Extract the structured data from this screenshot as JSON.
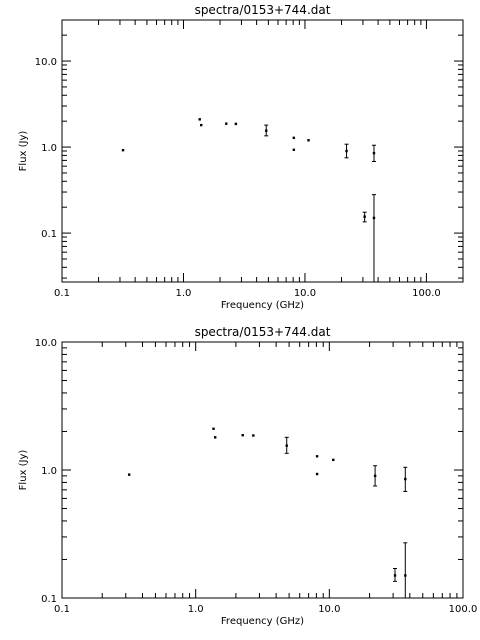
{
  "chart_data": [
    {
      "type": "scatter",
      "title": "spectra/0153+744.dat",
      "xlabel": "Frequency (GHz)",
      "ylabel": "Flux (Jy)",
      "xscale": "log",
      "yscale": "log",
      "xlim": [
        0.1,
        200
      ],
      "ylim": [
        0.027,
        30
      ],
      "xticks": [
        {
          "v": 0.1,
          "label": "0.1"
        },
        {
          "v": 1,
          "label": "1.0"
        },
        {
          "v": 10,
          "label": "10.0"
        },
        {
          "v": 100,
          "label": "100.0"
        }
      ],
      "yticks": [
        {
          "v": 0.1,
          "label": "0.1"
        },
        {
          "v": 1,
          "label": "1.0"
        },
        {
          "v": 10,
          "label": "10.0"
        }
      ],
      "points": [
        {
          "x": 0.318,
          "y": 0.92
        },
        {
          "x": 1.36,
          "y": 2.1
        },
        {
          "x": 1.4,
          "y": 1.8
        },
        {
          "x": 2.25,
          "y": 1.87
        },
        {
          "x": 2.7,
          "y": 1.86
        },
        {
          "x": 4.8,
          "y": 1.55,
          "ylo": 1.35,
          "yhi": 1.8
        },
        {
          "x": 8.1,
          "y": 1.28
        },
        {
          "x": 8.1,
          "y": 0.93
        },
        {
          "x": 10.7,
          "y": 1.2
        },
        {
          "x": 22,
          "y": 0.9,
          "ylo": 0.75,
          "yhi": 1.08
        },
        {
          "x": 37,
          "y": 0.85,
          "ylo": 0.68,
          "yhi": 1.05
        },
        {
          "x": 31,
          "y": 0.155,
          "ylo": 0.135,
          "yhi": 0.175
        },
        {
          "x": 37,
          "y": 0.15,
          "ylo": 0.02,
          "yhi": 0.28
        }
      ]
    },
    {
      "type": "scatter",
      "title": "spectra/0153+744.dat",
      "xlabel": "Frequency (GHz)",
      "ylabel": "Flux (Jy)",
      "xscale": "log",
      "yscale": "log",
      "xlim": [
        0.1,
        100
      ],
      "ylim": [
        0.1,
        10
      ],
      "xticks": [
        {
          "v": 0.1,
          "label": "0.1"
        },
        {
          "v": 1,
          "label": "1.0"
        },
        {
          "v": 10,
          "label": "10.0"
        },
        {
          "v": 100,
          "label": "100.0"
        }
      ],
      "yticks": [
        {
          "v": 0.1,
          "label": "0.1"
        },
        {
          "v": 1,
          "label": "1.0"
        },
        {
          "v": 10,
          "label": "10.0"
        }
      ],
      "points": [
        {
          "x": 0.318,
          "y": 0.92
        },
        {
          "x": 1.36,
          "y": 2.1
        },
        {
          "x": 1.4,
          "y": 1.8
        },
        {
          "x": 2.25,
          "y": 1.87
        },
        {
          "x": 2.7,
          "y": 1.86
        },
        {
          "x": 4.8,
          "y": 1.55,
          "ylo": 1.35,
          "yhi": 1.8
        },
        {
          "x": 8.1,
          "y": 1.28
        },
        {
          "x": 8.1,
          "y": 0.93
        },
        {
          "x": 10.7,
          "y": 1.2
        },
        {
          "x": 22,
          "y": 0.9,
          "ylo": 0.75,
          "yhi": 1.08
        },
        {
          "x": 37,
          "y": 0.85,
          "ylo": 0.68,
          "yhi": 1.05
        },
        {
          "x": 31,
          "y": 0.15,
          "ylo": 0.135,
          "yhi": 0.17
        },
        {
          "x": 37,
          "y": 0.15,
          "ylo": 0.1,
          "yhi": 0.27
        }
      ]
    }
  ]
}
